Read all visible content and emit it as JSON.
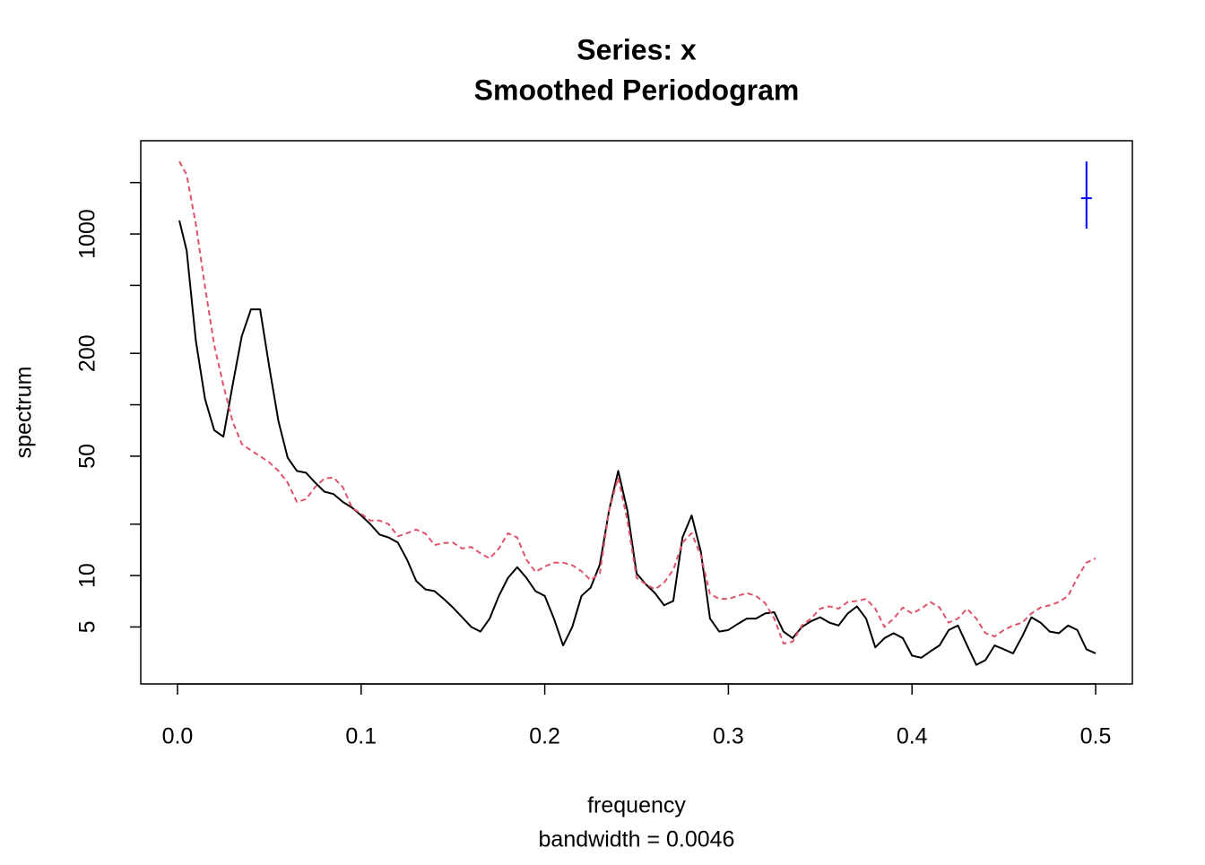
{
  "chart_data": {
    "type": "line",
    "title": "Series: x",
    "subtitle": "Smoothed Periodogram",
    "xlabel": "frequency",
    "xlabel_sub": "bandwidth = 0.0046",
    "ylabel": "spectrum",
    "log_y": true,
    "xlim": [
      -0.02,
      0.52
    ],
    "ylim": [
      2.32,
      3516
    ],
    "xticks": [
      {
        "value": 0,
        "label": "0.0"
      },
      0.1,
      0.2,
      0.3,
      0.4,
      0.5
    ],
    "yticks": [
      5,
      10,
      50,
      200,
      1000
    ],
    "yticks_minor": [
      20,
      100,
      500,
      2000
    ],
    "x": [
      0.001,
      0.005,
      0.01,
      0.015,
      0.02,
      0.025,
      0.03,
      0.035,
      0.04,
      0.045,
      0.05,
      0.055,
      0.06,
      0.065,
      0.07,
      0.075,
      0.08,
      0.085,
      0.09,
      0.095,
      0.1,
      0.105,
      0.11,
      0.115,
      0.12,
      0.125,
      0.13,
      0.135,
      0.14,
      0.145,
      0.15,
      0.155,
      0.16,
      0.165,
      0.17,
      0.175,
      0.18,
      0.185,
      0.19,
      0.195,
      0.2,
      0.205,
      0.21,
      0.215,
      0.22,
      0.225,
      0.23,
      0.235,
      0.24,
      0.245,
      0.25,
      0.255,
      0.26,
      0.265,
      0.27,
      0.275,
      0.28,
      0.285,
      0.29,
      0.295,
      0.3,
      0.305,
      0.31,
      0.315,
      0.32,
      0.325,
      0.33,
      0.335,
      0.34,
      0.345,
      0.35,
      0.355,
      0.36,
      0.365,
      0.37,
      0.375,
      0.38,
      0.385,
      0.39,
      0.395,
      0.4,
      0.405,
      0.41,
      0.415,
      0.42,
      0.425,
      0.43,
      0.435,
      0.44,
      0.445,
      0.45,
      0.455,
      0.46,
      0.465,
      0.47,
      0.475,
      0.48,
      0.485,
      0.49,
      0.495,
      0.5
    ],
    "series": [
      {
        "color": "#000000",
        "dash": false,
        "values": [
          1200,
          800,
          237,
          108,
          71,
          65,
          130,
          252,
          362,
          362,
          166,
          80,
          49,
          41,
          40,
          35,
          31,
          30,
          27,
          25,
          22.5,
          20,
          17.4,
          16.7,
          15.6,
          12.4,
          9.3,
          8.3,
          8.1,
          7.3,
          6.5,
          5.7,
          5.0,
          4.7,
          5.6,
          7.6,
          9.7,
          11.2,
          9.7,
          8.1,
          7.6,
          5.6,
          3.9,
          5.0,
          7.6,
          8.5,
          11.6,
          24,
          41,
          24,
          10.3,
          8.9,
          7.9,
          6.7,
          7.1,
          16.7,
          22.5,
          13.8,
          5.6,
          4.7,
          4.8,
          5.2,
          5.6,
          5.6,
          6.0,
          6.1,
          4.7,
          4.3,
          5.0,
          5.4,
          5.7,
          5.3,
          5.1,
          6.0,
          6.6,
          5.6,
          3.8,
          4.3,
          4.6,
          4.3,
          3.4,
          3.3,
          3.6,
          3.9,
          4.8,
          5.1,
          3.9,
          3.0,
          3.2,
          3.9,
          3.7,
          3.5,
          4.4,
          5.7,
          5.3,
          4.7,
          4.6,
          5.1,
          4.8,
          3.7,
          3.5
        ]
      },
      {
        "color": "#df536b",
        "dash": true,
        "values": [
          2660,
          2220,
          1140,
          490,
          224,
          130,
          80,
          59,
          54,
          50,
          46,
          41,
          35,
          27,
          28,
          33,
          37,
          37.5,
          33,
          25,
          23,
          21,
          21,
          20,
          17,
          17.7,
          18.6,
          17.6,
          15.1,
          15.5,
          15.6,
          14.4,
          14.7,
          13.5,
          12.6,
          14.4,
          17.7,
          16.7,
          12.4,
          10.5,
          11.3,
          11.9,
          11.9,
          11.5,
          10.6,
          9.4,
          10.3,
          24,
          37.5,
          21,
          9.7,
          8.9,
          8.3,
          9.1,
          10.8,
          15.6,
          17.7,
          13.1,
          7.8,
          7.3,
          7.3,
          7.6,
          7.9,
          7.6,
          6.9,
          5.6,
          4.0,
          4.1,
          5.1,
          5.6,
          6.4,
          6.6,
          6.4,
          7.0,
          7.1,
          7.3,
          6.4,
          5.0,
          5.6,
          6.5,
          6.0,
          6.4,
          7.0,
          6.5,
          5.3,
          5.6,
          6.4,
          5.6,
          4.6,
          4.4,
          4.8,
          5.1,
          5.3,
          6.0,
          6.5,
          6.7,
          7.0,
          7.6,
          9.7,
          11.9,
          12.6
        ]
      }
    ],
    "ci_bar": {
      "x": 0.495,
      "lower": 1075,
      "center": 1620,
      "upper": 2660,
      "color": "#0000ff"
    }
  }
}
